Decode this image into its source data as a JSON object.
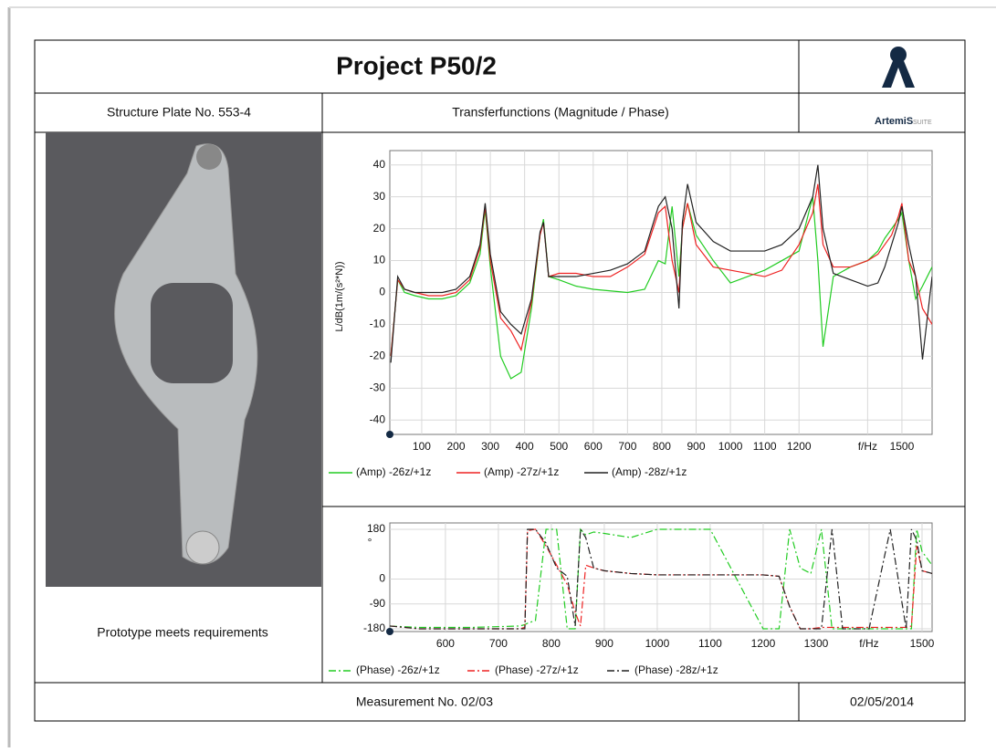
{
  "header": {
    "title": "Project P50/2",
    "logo_text": "ArtemiS",
    "logo_suffix": "SUITE"
  },
  "subheader": {
    "left": "Structure Plate No. 553-4",
    "middle": "Transferfunctions (Magnitude / Phase)"
  },
  "note": "Prototype meets requirements",
  "footer": {
    "measurement": "Measurement No. 02/03",
    "date": "02/05/2014"
  },
  "chart_data": [
    {
      "type": "line",
      "y_label": "L/dB(1m/(s²*N))",
      "grid": true,
      "legend": "bottom",
      "dash": "solid",
      "x": [
        10,
        30,
        50,
        80,
        120,
        160,
        200,
        240,
        270,
        285,
        300,
        330,
        360,
        390,
        420,
        445,
        455,
        470,
        500,
        550,
        600,
        650,
        700,
        750,
        790,
        810,
        830,
        850,
        860,
        875,
        900,
        950,
        1000,
        1050,
        1100,
        1150,
        1200,
        1240,
        1255,
        1270,
        1300,
        1350,
        1400,
        1430,
        1450,
        1470,
        1490,
        1500,
        1520,
        1540,
        1560,
        1588
      ],
      "series": [
        {
          "name": "(Amp) -26z/+1z",
          "color": "#22cc22",
          "values": [
            -20,
            4,
            0,
            -1,
            -2,
            -2,
            -1,
            3,
            12,
            26,
            8,
            -20,
            -27,
            -25,
            -5,
            18,
            23,
            5,
            4,
            2,
            1,
            0.5,
            0,
            1,
            10,
            9,
            27,
            5,
            20,
            28,
            18,
            10,
            3,
            5,
            7,
            10,
            13,
            30,
            10,
            -17,
            5,
            8,
            10,
            13,
            17,
            20,
            23,
            25,
            10,
            -2,
            2,
            8
          ]
        },
        {
          "name": "(Amp) -27z/+1z",
          "color": "#ee2222",
          "values": [
            -20,
            4,
            1,
            0,
            -1,
            -1,
            0,
            4,
            14,
            27,
            10,
            -8,
            -12,
            -18,
            -3,
            18,
            22,
            5,
            6,
            6,
            5,
            5,
            8,
            12,
            25,
            27,
            10,
            0,
            20,
            28,
            15,
            8,
            7,
            6,
            5,
            7,
            15,
            25,
            34,
            15,
            8,
            8,
            10,
            12,
            15,
            18,
            24,
            28,
            10,
            5,
            -5,
            -10
          ]
        },
        {
          "name": "(Amp) -28z/+1z",
          "color": "#222222",
          "values": [
            -22,
            5,
            1,
            0,
            0,
            0,
            1,
            5,
            15,
            28,
            12,
            -6,
            -10,
            -13,
            -2,
            19,
            22,
            5,
            5,
            5,
            6,
            7,
            9,
            13,
            27,
            30,
            20,
            -5,
            22,
            34,
            22,
            16,
            13,
            13,
            13,
            15,
            20,
            30,
            40,
            20,
            6,
            4,
            2,
            3,
            8,
            15,
            22,
            27,
            15,
            5,
            -21,
            5
          ]
        }
      ],
      "xlim": [
        7,
        1588
      ],
      "ylim": [
        -44.5,
        44.5
      ],
      "xticks": [
        100,
        200,
        300,
        400,
        500,
        600,
        700,
        800,
        900,
        1000,
        1100,
        1200,
        {
          "value": 1400,
          "label": "f/Hz"
        },
        1500
      ],
      "yticks": [
        -40,
        -30,
        -20,
        -10,
        0,
        10,
        20,
        30,
        40
      ]
    },
    {
      "type": "line",
      "y_unit": "°",
      "grid": true,
      "legend": "bottom",
      "dash": "dashdot",
      "x": [
        495,
        550,
        650,
        740,
        750,
        755,
        770,
        790,
        810,
        830,
        845,
        855,
        865,
        880,
        900,
        950,
        1000,
        1100,
        1200,
        1230,
        1250,
        1270,
        1290,
        1310,
        1330,
        1350,
        1400,
        1440,
        1470,
        1480,
        1490,
        1500,
        1519
      ],
      "series": [
        {
          "name": "(Phase) -26z/+1z",
          "color": "#22cc22",
          "values": [
            -170,
            -175,
            -175,
            -170,
            -165,
            -160,
            -150,
            180,
            180,
            -180,
            -180,
            180,
            160,
            170,
            165,
            150,
            180,
            180,
            -180,
            -180,
            180,
            40,
            20,
            180,
            -180,
            -180,
            -180,
            -180,
            -180,
            -180,
            180,
            100,
            50
          ]
        },
        {
          "name": "(Phase) -27z/+1z",
          "color": "#ee2222",
          "values": [
            -170,
            -180,
            -180,
            -180,
            -175,
            175,
            180,
            120,
            50,
            -20,
            -120,
            -170,
            50,
            40,
            30,
            20,
            15,
            15,
            15,
            10,
            -100,
            -180,
            -180,
            -175,
            -175,
            -175,
            -175,
            -175,
            -175,
            -170,
            120,
            30,
            20
          ]
        },
        {
          "name": "(Phase) -28z/+1z",
          "color": "#222222",
          "values": [
            -170,
            -180,
            -180,
            -180,
            -180,
            180,
            180,
            130,
            40,
            10,
            -170,
            180,
            150,
            40,
            30,
            20,
            15,
            15,
            15,
            10,
            -100,
            -180,
            -180,
            -180,
            180,
            -180,
            -180,
            180,
            -180,
            180,
            140,
            30,
            20
          ]
        }
      ],
      "xlim": [
        495,
        1519
      ],
      "ylim": [
        -190,
        203
      ],
      "xticks": [
        600,
        700,
        800,
        900,
        1000,
        1100,
        1200,
        1300,
        {
          "value": 1400,
          "label": "f/Hz"
        },
        1500
      ],
      "yticks": [
        -180,
        -90,
        0,
        180
      ]
    }
  ]
}
